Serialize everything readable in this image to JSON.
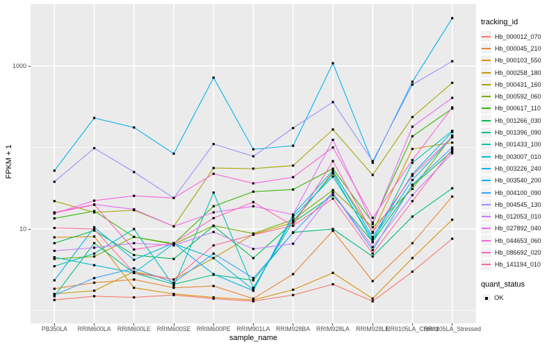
{
  "figure": {
    "background": "#FFFFFF",
    "panel_background": "#EBEBEB",
    "grid_color": "#FFFFFF",
    "axis_text_color": "#4D4D4D",
    "tick_mark_color": "#333333",
    "point_color": "#000000"
  },
  "axes": {
    "x_title": "sample_name",
    "y_title": "FPKM + 1",
    "y_tick_labels": [
      "10",
      "1000"
    ]
  },
  "legend": {
    "tracking_title": "tracking_id",
    "quant_title": "quant_status",
    "quant_items": [
      {
        "label": "OK"
      }
    ]
  },
  "chart_data": {
    "type": "line",
    "title": "",
    "xlabel": "sample_name",
    "ylabel": "FPKM + 1",
    "y_scale": "log10",
    "ylim": [
      1,
      4000
    ],
    "y_major_breaks": [
      10,
      1000
    ],
    "y_minor_breaks": [
      1,
      100
    ],
    "grid": true,
    "legend_position": "right",
    "point_marker": "black square (quant_status OK) at every observation",
    "categories": [
      "PB350LA",
      "RRIM600LA",
      "RRIM600LE",
      "RRIM600SE",
      "RRIM600PE",
      "RRIM901LA",
      "RRIM928BA",
      "RRIM928LA",
      "RRIM928LE",
      "RRII105LA_Control",
      "RRII105LA_Stressed"
    ],
    "series": [
      {
        "name": "Hb_000012_070",
        "color": "#F8766D",
        "values": [
          1.35,
          1.5,
          1.45,
          1.55,
          1.4,
          1.3,
          1.55,
          2.1,
          1.3,
          3.0,
          7.6
        ]
      },
      {
        "name": "Hb_000045_210",
        "color": "#EA8331",
        "values": [
          1.85,
          2.2,
          2.4,
          1.9,
          2.0,
          1.4,
          2.8,
          9.5,
          2.3,
          6.7,
          25
        ]
      },
      {
        "name": "Hb_000103_550",
        "color": "#D89000",
        "values": [
          7.9,
          8.1,
          1.9,
          1.6,
          1.45,
          1.35,
          1.8,
          2.9,
          1.4,
          4.4,
          13
        ]
      },
      {
        "name": "Hb_000258_180",
        "color": "#C49A00",
        "values": [
          1.6,
          1.75,
          3.0,
          2.4,
          4.4,
          8.6,
          12,
          50,
          9.2,
          96,
          115
        ]
      },
      {
        "name": "Hb_000431_160",
        "color": "#A3A500",
        "values": [
          22,
          16,
          17,
          10.8,
          56,
          55,
          60,
          166,
          46,
          236,
          620
        ]
      },
      {
        "name": "Hb_000592_060",
        "color": "#7CAE00",
        "values": [
          4.3,
          4.6,
          8.0,
          6.5,
          11,
          8.8,
          13,
          30,
          10.5,
          31,
          140
        ]
      },
      {
        "name": "Hb_000617_110",
        "color": "#39B600",
        "values": [
          13.5,
          16.6,
          8.0,
          6.6,
          19,
          28.7,
          30.5,
          55,
          12,
          137,
          300
        ]
      },
      {
        "name": "Hb_001266_030",
        "color": "#00BB4E",
        "values": [
          6.7,
          9.6,
          4.8,
          4.3,
          10.9,
          4.4,
          12,
          26,
          7.0,
          34,
          90
        ]
      },
      {
        "name": "Hb_001396_090",
        "color": "#00BF7D",
        "values": [
          1.5,
          6.7,
          2.9,
          2.1,
          2.75,
          2.35,
          9.1,
          10,
          4.6,
          14.2,
          31.6
        ]
      },
      {
        "name": "Hb_001433_100",
        "color": "#00C0AF",
        "values": [
          3.5,
          5.0,
          10.0,
          2.0,
          28,
          1.9,
          12.5,
          48,
          6.9,
          65,
          160
        ]
      },
      {
        "name": "Hb_003007_010",
        "color": "#00BCD8",
        "values": [
          4.5,
          3.6,
          2.9,
          6.6,
          4.4,
          1.8,
          14,
          44,
          7.5,
          40,
          133
        ]
      },
      {
        "name": "Hb_003226_240",
        "color": "#00B2EB",
        "values": [
          2.35,
          10.5,
          4.2,
          6.7,
          2.8,
          1.75,
          15,
          52,
          8.0,
          47,
          155
        ]
      },
      {
        "name": "Hb_003540_200",
        "color": "#00B0F6",
        "values": [
          52,
          230,
          176,
          84,
          718,
          95,
          105,
          1080,
          65,
          640,
          3850
        ]
      },
      {
        "name": "Hb_004100_090",
        "color": "#35A2FF",
        "values": [
          1.55,
          2.5,
          3.3,
          2.2,
          5.0,
          2.5,
          9.0,
          28,
          5.5,
          35,
          100
        ]
      },
      {
        "name": "Hb_004545_130",
        "color": "#9590FF",
        "values": [
          38,
          98,
          50,
          24,
          110,
          78,
          173,
          360,
          68,
          590,
          1140
        ]
      },
      {
        "name": "Hb_012053_010",
        "color": "#C77CFF",
        "values": [
          5.4,
          5.9,
          6.7,
          6.3,
          9.2,
          5.7,
          6.6,
          28,
          6.0,
          26,
          85
        ]
      },
      {
        "name": "Hb_027892_040",
        "color": "#E76BF3",
        "values": [
          16,
          20,
          17.4,
          10.8,
          16,
          19,
          15,
          124,
          11.5,
          180,
          406
        ]
      },
      {
        "name": "Hb_044653_060",
        "color": "#FA62DB",
        "values": [
          15.5,
          22.3,
          25.5,
          24,
          47.6,
          36.3,
          43.2,
          100,
          13.7,
          70,
          310
        ]
      },
      {
        "name": "Hb_086692_020",
        "color": "#FF62BC",
        "values": [
          15.8,
          19.8,
          5.6,
          6.7,
          13.6,
          21.4,
          11,
          68,
          9.0,
          45,
          135
        ]
      },
      {
        "name": "Hb_141194_010",
        "color": "#FF6A98",
        "values": [
          10.3,
          10,
          2.9,
          2.4,
          6.3,
          8.5,
          11,
          23.6,
          5.0,
          22,
          95
        ]
      }
    ]
  }
}
